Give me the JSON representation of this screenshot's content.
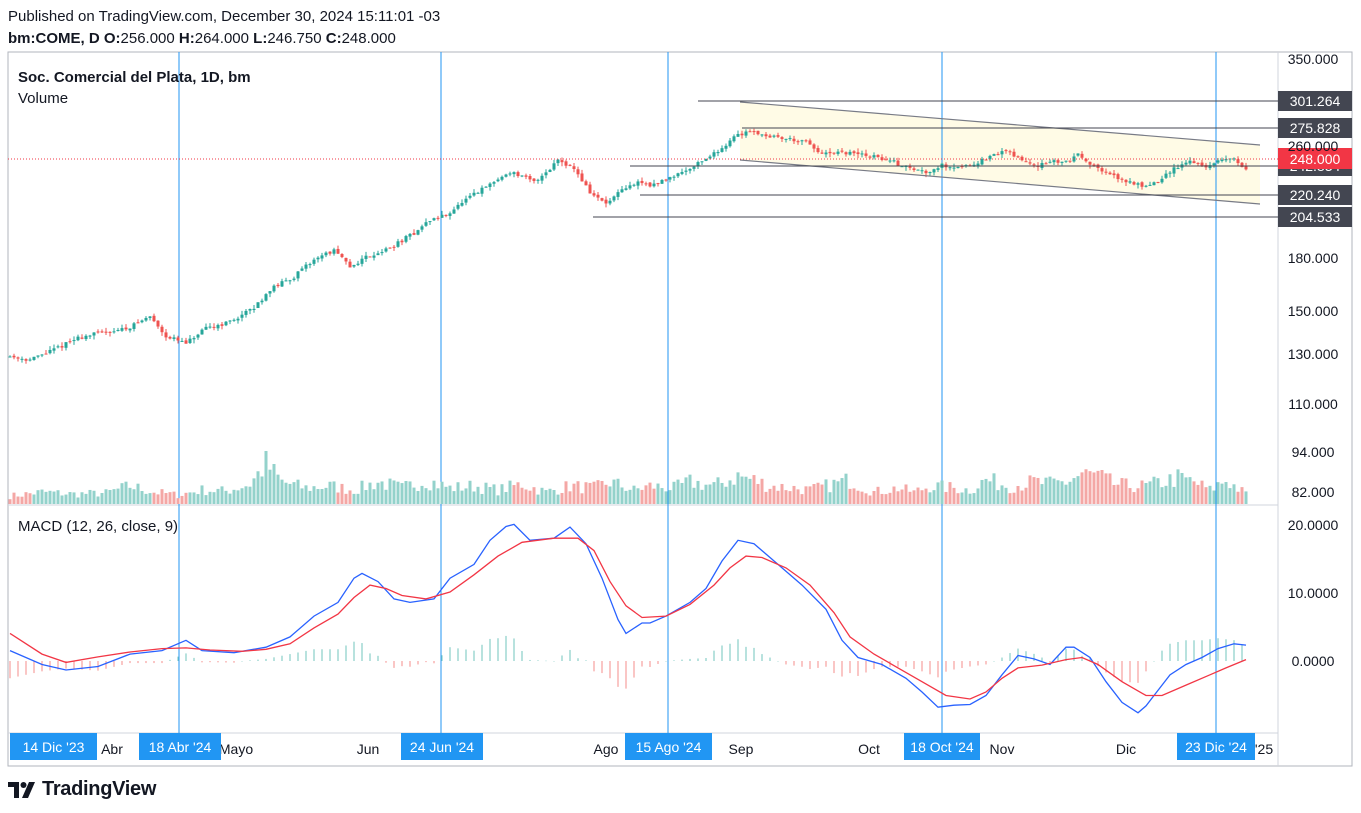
{
  "header": {
    "published": "Published on TradingView.com, December 30, 2024 15:11:01 -03",
    "symbol": "bm:COME, D",
    "o_label": "O:",
    "o_value": "256.000",
    "h_label": "H:",
    "h_value": "264.000",
    "l_label": "L:",
    "l_value": "246.750",
    "c_label": "C:",
    "c_value": "248.000"
  },
  "brand": {
    "name": "TradingView"
  },
  "colors": {
    "up": "#26a69a",
    "down": "#ef5350",
    "vol_up": "#93d2cb",
    "vol_down": "#f4a7a5",
    "macd": "#2962ff",
    "signal": "#f23645",
    "vline": "#2196f3",
    "date_badge": "#2196f3",
    "level_badge": "#434651",
    "last_badge": "#f23645",
    "channel_fill": "#fffbe6"
  },
  "chart_data": [
    {
      "type": "candlestick",
      "title": "Soc. Comercial del Plata, 1D, bm",
      "subtitle": "Volume",
      "y_scale": "log",
      "yticks": [
        "350.000",
        "260.000",
        "180.000",
        "150.000",
        "130.000",
        "110.000",
        "94.000",
        "82.000"
      ],
      "xticks": [
        "Abr",
        "Mayo",
        "Jun",
        "Ago",
        "Sep",
        "Oct",
        "Nov",
        "Dic",
        "'25"
      ],
      "date_badges": [
        "14 Dic '23",
        "18 Abr '24",
        "24 Jun '24",
        "15 Ago '24",
        "18 Oct '24",
        "23 Dic '24"
      ],
      "last_price": "248.000",
      "levels": [
        "301.264",
        "275.828",
        "242.834",
        "220.240",
        "204.533"
      ],
      "price_path": [
        [
          0,
          98
        ],
        [
          6,
          96
        ],
        [
          12,
          101
        ],
        [
          18,
          107
        ],
        [
          24,
          110
        ],
        [
          30,
          112
        ],
        [
          36,
          119
        ],
        [
          40,
          108
        ],
        [
          45,
          104
        ],
        [
          50,
          112
        ],
        [
          56,
          116
        ],
        [
          62,
          124
        ],
        [
          66,
          136
        ],
        [
          72,
          145
        ],
        [
          78,
          160
        ],
        [
          82,
          165
        ],
        [
          86,
          152
        ],
        [
          90,
          160
        ],
        [
          96,
          167
        ],
        [
          102,
          180
        ],
        [
          106,
          192
        ],
        [
          110,
          197
        ],
        [
          116,
          215
        ],
        [
          122,
          232
        ],
        [
          126,
          244
        ],
        [
          132,
          232
        ],
        [
          136,
          248
        ],
        [
          138,
          260
        ],
        [
          142,
          248
        ],
        [
          146,
          220
        ],
        [
          150,
          208
        ],
        [
          154,
          222
        ],
        [
          158,
          232
        ],
        [
          162,
          228
        ],
        [
          166,
          238
        ],
        [
          170,
          246
        ],
        [
          174,
          258
        ],
        [
          178,
          270
        ],
        [
          182,
          290
        ],
        [
          186,
          300
        ],
        [
          190,
          292
        ],
        [
          196,
          287
        ],
        [
          200,
          282
        ],
        [
          204,
          266
        ],
        [
          210,
          268
        ],
        [
          214,
          266
        ],
        [
          218,
          262
        ],
        [
          222,
          256
        ],
        [
          226,
          248
        ],
        [
          230,
          244
        ],
        [
          234,
          252
        ],
        [
          238,
          250
        ],
        [
          242,
          254
        ],
        [
          246,
          262
        ],
        [
          250,
          272
        ],
        [
          254,
          258
        ],
        [
          258,
          252
        ],
        [
          262,
          256
        ],
        [
          266,
          258
        ],
        [
          268,
          268
        ],
        [
          272,
          250
        ],
        [
          276,
          240
        ],
        [
          280,
          233
        ],
        [
          284,
          228
        ],
        [
          288,
          232
        ],
        [
          292,
          248
        ],
        [
          296,
          258
        ],
        [
          300,
          250
        ],
        [
          304,
          258
        ],
        [
          307,
          262
        ],
        [
          309,
          248
        ]
      ],
      "volume_path": [
        [
          0,
          8
        ],
        [
          8,
          12
        ],
        [
          16,
          10
        ],
        [
          24,
          11
        ],
        [
          30,
          18
        ],
        [
          36,
          12
        ],
        [
          42,
          9
        ],
        [
          48,
          14
        ],
        [
          54,
          13
        ],
        [
          60,
          20
        ],
        [
          64,
          40
        ],
        [
          68,
          22
        ],
        [
          74,
          16
        ],
        [
          80,
          18
        ],
        [
          86,
          14
        ],
        [
          92,
          22
        ],
        [
          98,
          16
        ],
        [
          104,
          24
        ],
        [
          110,
          16
        ],
        [
          116,
          18
        ],
        [
          122,
          14
        ],
        [
          128,
          20
        ],
        [
          134,
          12
        ],
        [
          140,
          18
        ],
        [
          146,
          16
        ],
        [
          150,
          22
        ],
        [
          156,
          14
        ],
        [
          160,
          18
        ],
        [
          166,
          16
        ],
        [
          170,
          22
        ],
        [
          176,
          18
        ],
        [
          182,
          28
        ],
        [
          186,
          24
        ],
        [
          190,
          18
        ],
        [
          196,
          16
        ],
        [
          200,
          14
        ],
        [
          206,
          20
        ],
        [
          210,
          24
        ],
        [
          216,
          12
        ],
        [
          222,
          16
        ],
        [
          226,
          12
        ],
        [
          230,
          18
        ],
        [
          236,
          16
        ],
        [
          240,
          14
        ],
        [
          244,
          24
        ],
        [
          250,
          18
        ],
        [
          256,
          22
        ],
        [
          260,
          20
        ],
        [
          264,
          22
        ],
        [
          268,
          30
        ],
        [
          272,
          28
        ],
        [
          276,
          20
        ],
        [
          280,
          18
        ],
        [
          284,
          18
        ],
        [
          288,
          22
        ],
        [
          292,
          26
        ],
        [
          296,
          22
        ],
        [
          300,
          14
        ],
        [
          304,
          24
        ],
        [
          309,
          10
        ]
      ]
    },
    {
      "type": "line",
      "title": "MACD (12, 26, close, 9)",
      "yticks": [
        "20.0000",
        "10.0000",
        "0.0000"
      ],
      "series": [
        {
          "values": [
            [
              0,
              1.5
            ],
            [
              8,
              -0.5
            ],
            [
              14,
              -1.3
            ],
            [
              22,
              -0.8
            ],
            [
              30,
              1.0
            ],
            [
              38,
              1.5
            ],
            [
              44,
              3.0
            ],
            [
              48,
              1.5
            ],
            [
              56,
              1.2
            ],
            [
              64,
              2.0
            ],
            [
              70,
              3.5
            ],
            [
              76,
              6.5
            ],
            [
              82,
              8.5
            ],
            [
              86,
              12.0
            ],
            [
              88,
              12.7
            ],
            [
              92,
              11.5
            ],
            [
              96,
              9.0
            ],
            [
              100,
              8.5
            ],
            [
              106,
              9.0
            ],
            [
              110,
              12.0
            ],
            [
              116,
              14.0
            ],
            [
              120,
              17.5
            ],
            [
              124,
              19.5
            ],
            [
              126,
              19.8
            ],
            [
              130,
              17.5
            ],
            [
              136,
              17.8
            ],
            [
              140,
              19.4
            ],
            [
              144,
              17.0
            ],
            [
              148,
              12.0
            ],
            [
              152,
              6.0
            ],
            [
              154,
              4.0
            ],
            [
              158,
              5.5
            ],
            [
              160,
              5.5
            ],
            [
              164,
              6.5
            ],
            [
              170,
              8.5
            ],
            [
              174,
              10.5
            ],
            [
              178,
              14.5
            ],
            [
              182,
              17.5
            ],
            [
              186,
              17.0
            ],
            [
              192,
              14.0
            ],
            [
              198,
              11.0
            ],
            [
              204,
              7.5
            ],
            [
              208,
              3.0
            ],
            [
              212,
              0.5
            ],
            [
              218,
              -0.5
            ],
            [
              224,
              -2.5
            ],
            [
              228,
              -4.5
            ],
            [
              232,
              -6.7
            ],
            [
              236,
              -6.4
            ],
            [
              240,
              -6.3
            ],
            [
              244,
              -5.0
            ],
            [
              248,
              -2.0
            ],
            [
              252,
              0.8
            ],
            [
              256,
              0.3
            ],
            [
              260,
              -0.5
            ],
            [
              264,
              2.0
            ],
            [
              266,
              2.0
            ],
            [
              270,
              0.5
            ],
            [
              274,
              -3.0
            ],
            [
              278,
              -6.0
            ],
            [
              282,
              -7.5
            ],
            [
              284,
              -6.5
            ],
            [
              286,
              -5.0
            ],
            [
              290,
              -2.0
            ],
            [
              294,
              -0.5
            ],
            [
              298,
              0.5
            ],
            [
              302,
              1.8
            ],
            [
              306,
              2.5
            ],
            [
              309,
              2.3
            ]
          ]
        },
        {
          "values": [
            [
              0,
              4.0
            ],
            [
              8,
              1.0
            ],
            [
              14,
              -0.2
            ],
            [
              22,
              0.6
            ],
            [
              30,
              1.3
            ],
            [
              38,
              1.8
            ],
            [
              44,
              1.9
            ],
            [
              50,
              1.6
            ],
            [
              58,
              1.4
            ],
            [
              64,
              1.7
            ],
            [
              70,
              2.5
            ],
            [
              76,
              4.8
            ],
            [
              82,
              6.8
            ],
            [
              86,
              9.2
            ],
            [
              90,
              11.0
            ],
            [
              94,
              10.5
            ],
            [
              98,
              9.5
            ],
            [
              104,
              9.0
            ],
            [
              110,
              10.0
            ],
            [
              116,
              12.5
            ],
            [
              122,
              15.2
            ],
            [
              128,
              17.2
            ],
            [
              136,
              17.8
            ],
            [
              142,
              17.8
            ],
            [
              146,
              16.0
            ],
            [
              150,
              11.5
            ],
            [
              154,
              8.0
            ],
            [
              158,
              6.3
            ],
            [
              164,
              6.5
            ],
            [
              170,
              8.2
            ],
            [
              176,
              11.0
            ],
            [
              180,
              13.5
            ],
            [
              184,
              15.2
            ],
            [
              188,
              15.0
            ],
            [
              194,
              13.5
            ],
            [
              200,
              11.0
            ],
            [
              206,
              7.0
            ],
            [
              210,
              3.5
            ],
            [
              216,
              1.0
            ],
            [
              222,
              -1.0
            ],
            [
              228,
              -3.0
            ],
            [
              234,
              -5.0
            ],
            [
              240,
              -5.5
            ],
            [
              244,
              -4.5
            ],
            [
              248,
              -2.5
            ],
            [
              252,
              -1.0
            ],
            [
              258,
              -0.6
            ],
            [
              264,
              0.2
            ],
            [
              268,
              0.5
            ],
            [
              272,
              -0.5
            ],
            [
              278,
              -3.0
            ],
            [
              284,
              -5.0
            ],
            [
              288,
              -5.0
            ],
            [
              294,
              -3.5
            ],
            [
              300,
              -2.0
            ],
            [
              304,
              -1.0
            ],
            [
              309,
              0.2
            ]
          ]
        }
      ]
    }
  ]
}
